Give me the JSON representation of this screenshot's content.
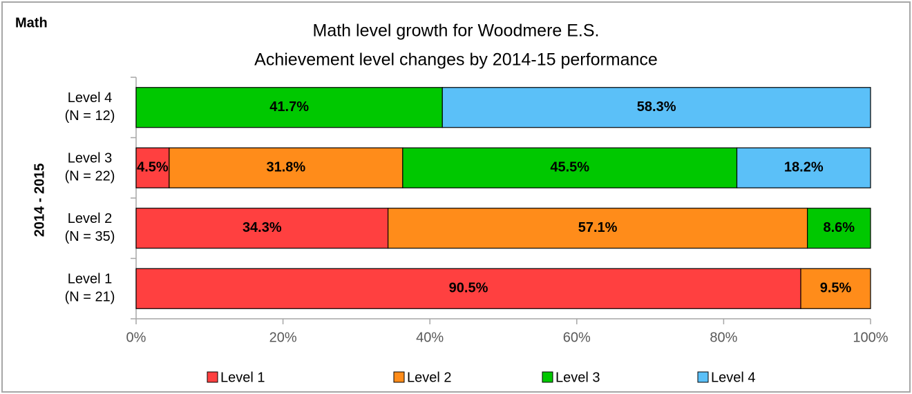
{
  "chart_data": {
    "type": "stacked_barh",
    "corner_label": "Math",
    "title": "Math level growth for Woodmere E.S.",
    "subtitle": "Achievement level changes by 2014-15 performance",
    "y_axis_label": "2014 - 2015",
    "categories": [
      "Level 1\n(N = 21)",
      "Level 2\n(N = 35)",
      "Level 3\n(N = 22)",
      "Level 4\n(N = 12)"
    ],
    "series": [
      {
        "name": "Level 1",
        "color": "#ff4040",
        "values": [
          90.5,
          34.3,
          4.5,
          null
        ],
        "value_labels": [
          "90.5%",
          "34.3%",
          "4.5%",
          null
        ]
      },
      {
        "name": "Level 2",
        "color": "#ff8c1a",
        "values": [
          9.5,
          57.1,
          31.8,
          null
        ],
        "value_labels": [
          "9.5%",
          "57.1%",
          "31.8%",
          null
        ]
      },
      {
        "name": "Level 3",
        "color": "#00c800",
        "values": [
          null,
          8.6,
          45.5,
          41.7
        ],
        "value_labels": [
          null,
          "8.6%",
          "45.5%",
          "41.7%"
        ]
      },
      {
        "name": "Level 4",
        "color": "#5bc0f8",
        "values": [
          null,
          null,
          18.2,
          58.3
        ],
        "value_labels": [
          null,
          null,
          "18.2%",
          "58.3%"
        ]
      }
    ],
    "xlim": [
      0,
      100
    ],
    "xticks": [
      {
        "value": 0,
        "label": "0%"
      },
      {
        "value": 20,
        "label": "20%"
      },
      {
        "value": 40,
        "label": "40%"
      },
      {
        "value": 60,
        "label": "60%"
      },
      {
        "value": 80,
        "label": "80%"
      },
      {
        "value": 100,
        "label": "100%"
      }
    ],
    "legend": "bottom"
  }
}
